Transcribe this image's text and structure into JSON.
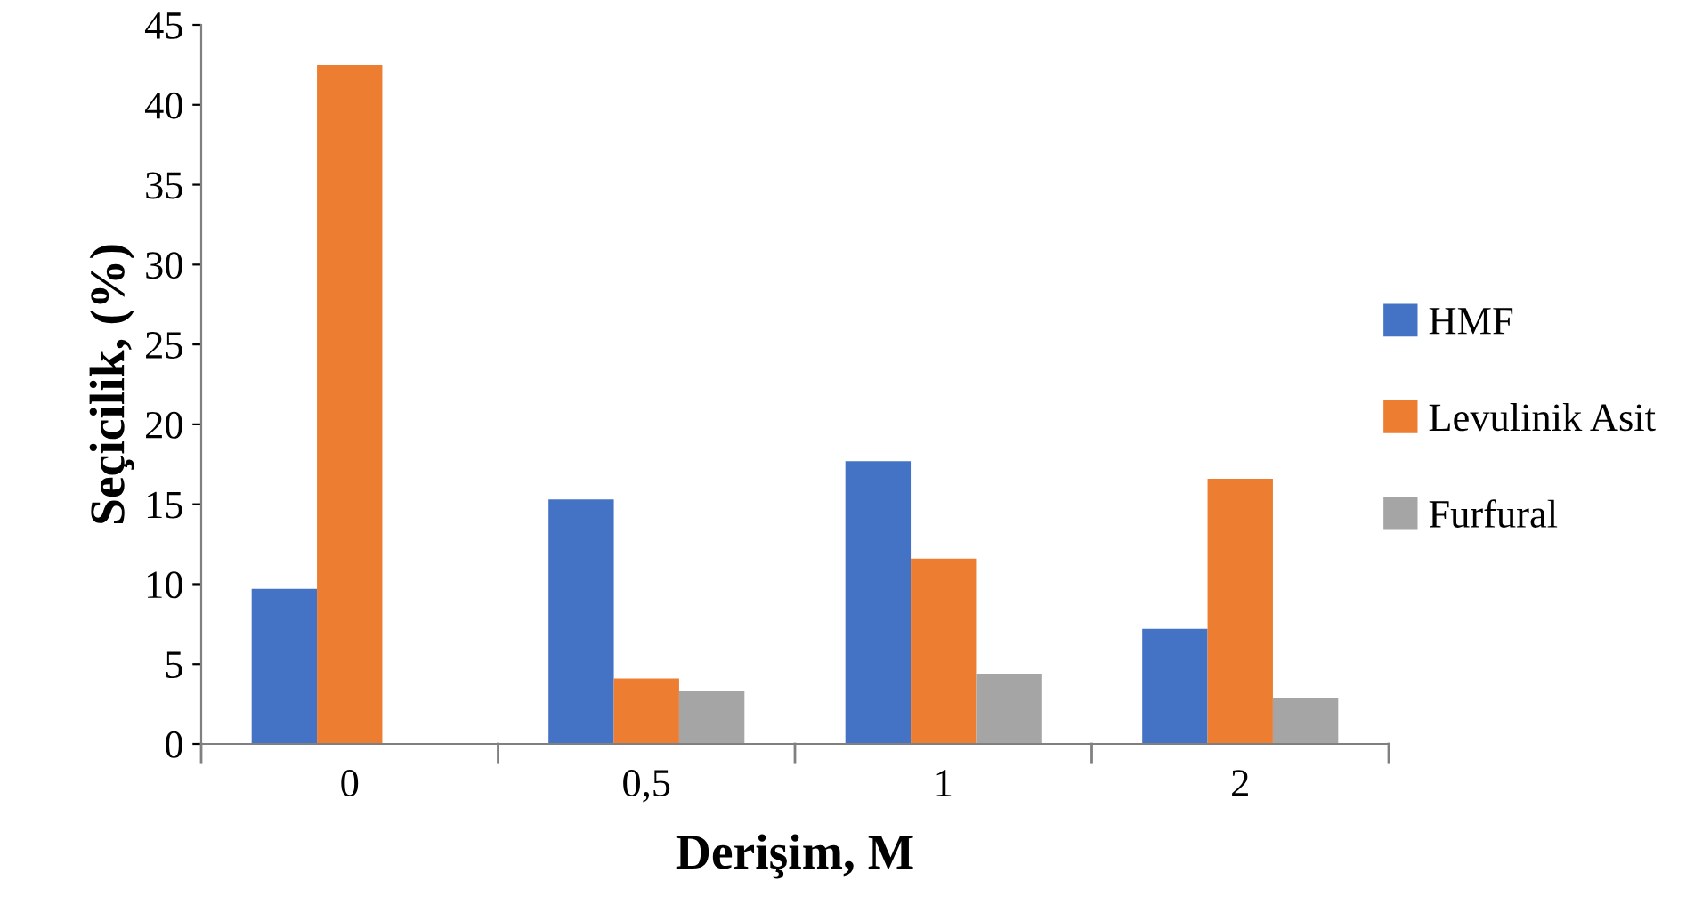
{
  "chart_data": {
    "type": "bar",
    "xlabel": "Derişim, M",
    "ylabel": "Seçicilik, (%)",
    "categories": [
      "0",
      "0,5",
      "1",
      "2"
    ],
    "series": [
      {
        "name": "HMF",
        "color": "#4472c4",
        "values": [
          9.7,
          15.3,
          17.7,
          7.2
        ]
      },
      {
        "name": "Levulinik Asit",
        "color": "#ed7d31",
        "values": [
          42.5,
          4.1,
          11.6,
          16.6
        ]
      },
      {
        "name": "Furfural",
        "color": "#a5a5a5",
        "values": [
          0,
          3.3,
          4.4,
          2.9
        ]
      }
    ],
    "ylim": [
      0,
      45
    ],
    "yticks": [
      0,
      5,
      10,
      15,
      20,
      25,
      30,
      35,
      40,
      45
    ],
    "grid": false,
    "legend": "right"
  }
}
